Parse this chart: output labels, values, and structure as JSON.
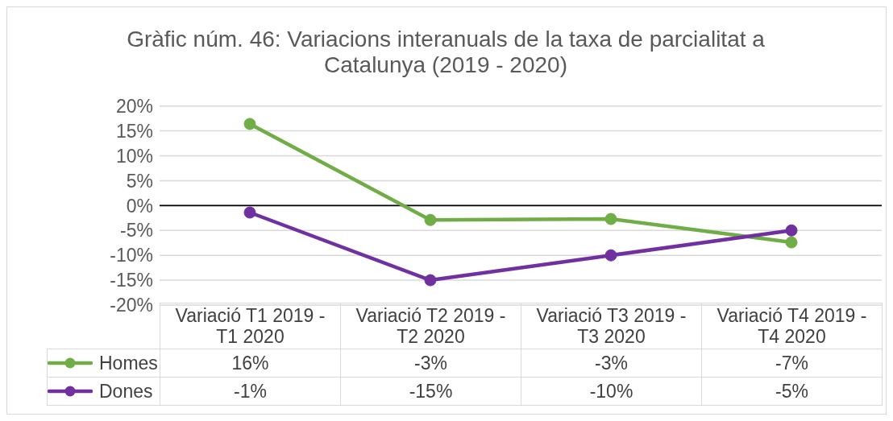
{
  "chart_data": {
    "type": "line",
    "title": "Gràfic núm. 46: Variacions interanuals de la taxa de parcialitat a Catalunya (2019 - 2020)",
    "categories": [
      "Variació T1 2019 - T1 2020",
      "Variació T2 2019 - T2 2020",
      "Variació T3 2019 - T3 2020",
      "Variació T4 2019 - T4 2020"
    ],
    "series": [
      {
        "name": "Homes",
        "color": "#70ad47",
        "values": [
          16.4,
          -2.9,
          -2.7,
          -7.4
        ],
        "value_labels": [
          "16%",
          "-3%",
          "-3%",
          "-7%"
        ]
      },
      {
        "name": "Dones",
        "color": "#7030a0",
        "values": [
          -1.4,
          -15,
          -10,
          -5
        ],
        "value_labels": [
          "-1%",
          "-15%",
          "-10%",
          "-5%"
        ]
      }
    ],
    "ylim": [
      -20,
      20
    ],
    "yticks": [
      {
        "value": -20,
        "label": "-20%"
      },
      {
        "value": -15,
        "label": "-15%"
      },
      {
        "value": -10,
        "label": "-10%"
      },
      {
        "value": -5,
        "label": "-5%"
      },
      {
        "value": 0,
        "label": "0%"
      },
      {
        "value": 5,
        "label": "5%"
      },
      {
        "value": 10,
        "label": "10%"
      },
      {
        "value": 15,
        "label": "15%"
      },
      {
        "value": 20,
        "label": "20%"
      }
    ],
    "grid": "y",
    "legend": "bottom",
    "marker": "circle",
    "line_style": "solid",
    "ref_lines": [
      {
        "axis": "y",
        "value": 0,
        "color": "#000000"
      }
    ]
  }
}
